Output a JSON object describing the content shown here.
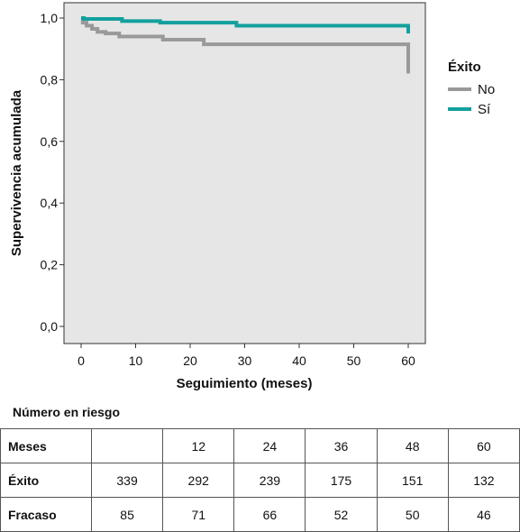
{
  "chart_data": {
    "type": "line",
    "xlabel": "Seguimiento (meses)",
    "ylabel": "Supervivencia acumulada",
    "xlim": [
      -2,
      63
    ],
    "ylim": [
      -0.05,
      1.05
    ],
    "xticks": [
      0,
      10,
      20,
      30,
      40,
      50,
      60
    ],
    "xtick_labels": [
      "0",
      "10",
      "20",
      "30",
      "40",
      "50",
      "60"
    ],
    "yticks": [
      0.0,
      0.2,
      0.4,
      0.6,
      0.8,
      1.0
    ],
    "ytick_labels": [
      "0,0",
      "0,2",
      "0,4",
      "0,6",
      "0,8",
      "1,0"
    ],
    "grid": false,
    "plot_background": "#e6e6e6",
    "legend": {
      "title": "Éxito",
      "placement": "top-right, outside plot",
      "entries": [
        {
          "label": "No",
          "color": "#999999"
        },
        {
          "label": "Sí",
          "color": "#12a09d"
        }
      ]
    },
    "series": [
      {
        "name": "No",
        "color": "#999999",
        "step": true,
        "x": [
          0,
          0.3,
          1,
          2,
          3,
          4.5,
          7,
          15,
          22.5,
          60,
          60
        ],
        "y": [
          1.0,
          0.985,
          0.975,
          0.965,
          0.955,
          0.95,
          0.94,
          0.93,
          0.915,
          0.915,
          0.82
        ]
      },
      {
        "name": "Sí",
        "color": "#12a09d",
        "step": true,
        "x": [
          0,
          0.5,
          7.5,
          14.5,
          28.5,
          60,
          60
        ],
        "y": [
          1.0,
          0.997,
          0.99,
          0.985,
          0.975,
          0.965,
          0.95
        ]
      }
    ]
  },
  "risk_table": {
    "title": "Número en riesgo",
    "rows": [
      {
        "label": "Meses",
        "values": [
          "",
          "12",
          "24",
          "36",
          "48",
          "60"
        ]
      },
      {
        "label": "Éxito",
        "values": [
          "339",
          "292",
          "239",
          "175",
          "151",
          "132"
        ]
      },
      {
        "label": "Fracaso",
        "values": [
          "85",
          "71",
          "66",
          "52",
          "50",
          "46"
        ]
      }
    ]
  }
}
